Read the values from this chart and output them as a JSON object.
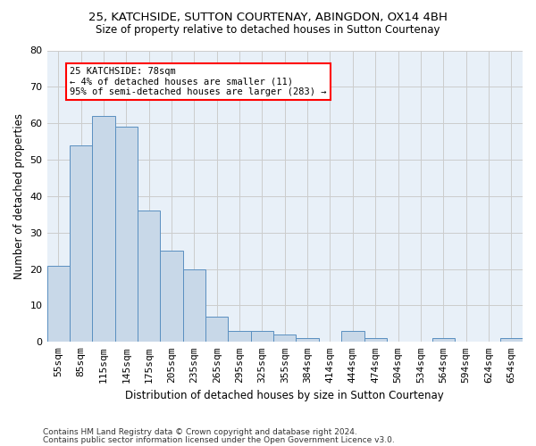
{
  "title1": "25, KATCHSIDE, SUTTON COURTENAY, ABINGDON, OX14 4BH",
  "title2": "Size of property relative to detached houses in Sutton Courtenay",
  "xlabel": "Distribution of detached houses by size in Sutton Courtenay",
  "ylabel": "Number of detached properties",
  "categories": [
    "55sqm",
    "85sqm",
    "115sqm",
    "145sqm",
    "175sqm",
    "205sqm",
    "235sqm",
    "265sqm",
    "295sqm",
    "325sqm",
    "355sqm",
    "384sqm",
    "414sqm",
    "444sqm",
    "474sqm",
    "504sqm",
    "534sqm",
    "564sqm",
    "594sqm",
    "624sqm",
    "654sqm"
  ],
  "values": [
    21,
    54,
    62,
    59,
    36,
    25,
    20,
    7,
    3,
    3,
    2,
    1,
    0,
    3,
    1,
    0,
    0,
    1,
    0,
    0,
    1
  ],
  "bar_color": "#c8d8e8",
  "bar_edge_color": "#5a8fc0",
  "annotation_text": "25 KATCHSIDE: 78sqm\n← 4% of detached houses are smaller (11)\n95% of semi-detached houses are larger (283) →",
  "annotation_box_color": "white",
  "annotation_box_edge_color": "red",
  "ylim": [
    0,
    80
  ],
  "yticks": [
    0,
    10,
    20,
    30,
    40,
    50,
    60,
    70,
    80
  ],
  "grid_color": "#cccccc",
  "background_color": "#e8f0f8",
  "footnote1": "Contains HM Land Registry data © Crown copyright and database right 2024.",
  "footnote2": "Contains public sector information licensed under the Open Government Licence v3.0."
}
